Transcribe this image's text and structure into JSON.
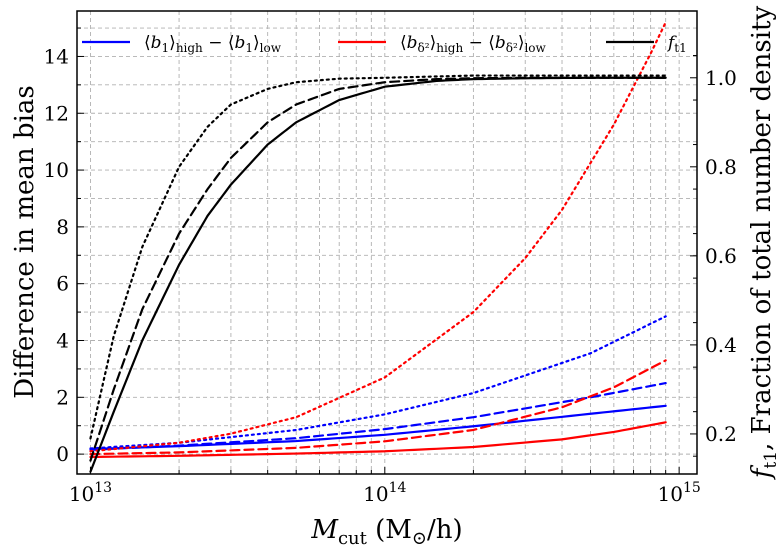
{
  "chart_data": {
    "type": "line",
    "xscale": "log",
    "xlim": [
      9000000000000.0,
      1150000000000000.0
    ],
    "ylim": [
      -0.7,
      15.6
    ],
    "y2lim": [
      0.11,
      1.15
    ],
    "xlabel": "M_cut (M_⊙/h)",
    "xlabel_main": "M",
    "xlabel_sub": "cut",
    "xlabel_rest": " (M",
    "xlabel_odot": "⊙",
    "xlabel_tail": "/h)",
    "ylabel": "Difference in mean bias",
    "y2label": "f_t1, Fraction of total number density",
    "y2label_lead": "f",
    "y2label_sub": "t1",
    "y2label_rest": ",  Fraction of total number density",
    "x_ticks": [
      {
        "value": 10000000000000.0,
        "label": "10",
        "exp": "13"
      },
      {
        "value": 100000000000000.0,
        "label": "10",
        "exp": "14"
      },
      {
        "value": 1000000000000000.0,
        "label": "10",
        "exp": "15"
      }
    ],
    "y_ticks": [
      {
        "value": 0,
        "label": "0"
      },
      {
        "value": 2,
        "label": "2"
      },
      {
        "value": 4,
        "label": "4"
      },
      {
        "value": 6,
        "label": "6"
      },
      {
        "value": 8,
        "label": "8"
      },
      {
        "value": 10,
        "label": "10"
      },
      {
        "value": 12,
        "label": "12"
      },
      {
        "value": 14,
        "label": "14"
      }
    ],
    "y2_ticks": [
      {
        "value": 0.2,
        "label": "0.2"
      },
      {
        "value": 0.4,
        "label": "0.4"
      },
      {
        "value": 0.6,
        "label": "0.6"
      },
      {
        "value": 0.8,
        "label": "0.8"
      },
      {
        "value": 1.0,
        "label": "1.0"
      }
    ],
    "grid": true,
    "legend_position": "top",
    "legend": [
      {
        "name": "b1",
        "label": "⟨b₁⟩high − ⟨b₁⟩low",
        "color": "#0000ff"
      },
      {
        "name": "bdelta2",
        "label": "⟨bδ²⟩high − ⟨bδ²⟩low",
        "color": "#ff0000"
      },
      {
        "name": "ft1",
        "label": "f_t1",
        "color": "#000000"
      }
    ],
    "legend_parts": {
      "b1": {
        "a": "⟨",
        "b": "b",
        "c": "1",
        "d": "⟩",
        "e": "high",
        "f": " − ⟨",
        "g": "b",
        "h": "1",
        "i": "⟩",
        "j": "low"
      },
      "bdelta2": {
        "a": "⟨",
        "b": "b",
        "c": "δ²",
        "d": "⟩",
        "e": "high",
        "f": " − ⟨",
        "g": "b",
        "h": "δ²",
        "i": "⟩",
        "j": "low"
      },
      "ft1": {
        "a": "f",
        "b": "t1"
      }
    },
    "series": [
      {
        "name": "b1 solid",
        "color": "#0000ff",
        "style": "solid",
        "axis": "left",
        "x": [
          10000000000000.0,
          20000000000000.0,
          50000000000000.0,
          100000000000000.0,
          200000000000000.0,
          500000000000000.0,
          900000000000000.0
        ],
        "y": [
          0.18,
          0.28,
          0.46,
          0.68,
          0.98,
          1.42,
          1.7
        ]
      },
      {
        "name": "b1 dashed",
        "color": "#0000ff",
        "style": "dashed",
        "axis": "left",
        "x": [
          10000000000000.0,
          20000000000000.0,
          50000000000000.0,
          100000000000000.0,
          200000000000000.0,
          500000000000000.0,
          900000000000000.0
        ],
        "y": [
          0.15,
          0.3,
          0.56,
          0.88,
          1.3,
          2.0,
          2.5
        ]
      },
      {
        "name": "b1 dotted",
        "color": "#0000ff",
        "style": "dotted",
        "axis": "left",
        "x": [
          10000000000000.0,
          20000000000000.0,
          50000000000000.0,
          100000000000000.0,
          200000000000000.0,
          500000000000000.0,
          900000000000000.0
        ],
        "y": [
          0.2,
          0.4,
          0.85,
          1.4,
          2.15,
          3.55,
          4.85
        ]
      },
      {
        "name": "bdelta2 solid",
        "color": "#ff0000",
        "style": "solid",
        "axis": "left",
        "x": [
          10000000000000.0,
          20000000000000.0,
          50000000000000.0,
          100000000000000.0,
          200000000000000.0,
          400000000000000.0,
          600000000000000.0,
          900000000000000.0
        ],
        "y": [
          -0.1,
          -0.06,
          0.02,
          0.1,
          0.25,
          0.52,
          0.78,
          1.12
        ]
      },
      {
        "name": "bdelta2 dashed",
        "color": "#ff0000",
        "style": "dashed",
        "axis": "left",
        "x": [
          10000000000000.0,
          20000000000000.0,
          50000000000000.0,
          100000000000000.0,
          200000000000000.0,
          400000000000000.0,
          600000000000000.0,
          900000000000000.0
        ],
        "y": [
          0.0,
          0.06,
          0.22,
          0.45,
          0.85,
          1.65,
          2.35,
          3.3
        ]
      },
      {
        "name": "bdelta2 dotted",
        "color": "#ff0000",
        "style": "dotted",
        "axis": "left",
        "x": [
          10000000000000.0,
          20000000000000.0,
          30000000000000.0,
          50000000000000.0,
          100000000000000.0,
          200000000000000.0,
          300000000000000.0,
          400000000000000.0,
          600000000000000.0,
          800000000000000.0,
          900000000000000.0
        ],
        "y": [
          0.1,
          0.4,
          0.72,
          1.3,
          2.7,
          5.0,
          6.9,
          8.6,
          11.6,
          14.1,
          15.2
        ]
      },
      {
        "name": "ft1 solid",
        "color": "#000000",
        "style": "solid",
        "axis": "right",
        "x": [
          10000000000000.0,
          12000000000000.0,
          15000000000000.0,
          20000000000000.0,
          25000000000000.0,
          30000000000000.0,
          40000000000000.0,
          50000000000000.0,
          70000000000000.0,
          100000000000000.0,
          150000000000000.0,
          200000000000000.0,
          300000000000000.0,
          500000000000000.0,
          900000000000000.0
        ],
        "y": [
          0.115,
          0.25,
          0.41,
          0.58,
          0.69,
          0.76,
          0.85,
          0.9,
          0.95,
          0.98,
          0.993,
          0.997,
          0.999,
          1.0,
          1.0
        ]
      },
      {
        "name": "ft1 dashed",
        "color": "#000000",
        "style": "dashed",
        "axis": "right",
        "x": [
          10000000000000.0,
          12000000000000.0,
          15000000000000.0,
          20000000000000.0,
          25000000000000.0,
          30000000000000.0,
          40000000000000.0,
          50000000000000.0,
          70000000000000.0,
          100000000000000.0,
          150000000000000.0,
          200000000000000.0,
          300000000000000.0,
          900000000000000.0
        ],
        "y": [
          0.14,
          0.3,
          0.48,
          0.65,
          0.75,
          0.82,
          0.9,
          0.94,
          0.975,
          0.99,
          0.997,
          0.999,
          1.0,
          1.0
        ]
      },
      {
        "name": "ft1 dotted",
        "color": "#000000",
        "style": "dotted",
        "axis": "right",
        "x": [
          10000000000000.0,
          12000000000000.0,
          15000000000000.0,
          20000000000000.0,
          25000000000000.0,
          30000000000000.0,
          40000000000000.0,
          50000000000000.0,
          70000000000000.0,
          100000000000000.0,
          200000000000000.0,
          900000000000000.0
        ],
        "y": [
          0.19,
          0.42,
          0.62,
          0.8,
          0.89,
          0.94,
          0.975,
          0.99,
          0.998,
          1.0,
          1.005,
          1.005
        ]
      }
    ]
  }
}
